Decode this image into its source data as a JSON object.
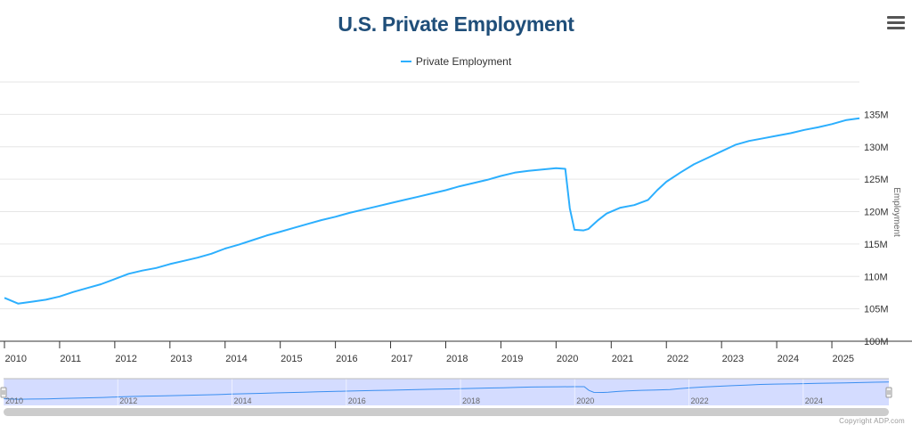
{
  "header": {
    "title": "U.S. Private Employment",
    "menu_icon": "hamburger-menu-icon"
  },
  "legend": {
    "label": "Private Employment",
    "color": "#2caffe"
  },
  "colors": {
    "series": "#2caffe",
    "title": "#1f4e79",
    "navigator_fill": "#ccd6ff",
    "navigator_line": "#3a8ef0",
    "scrollbar": "#cccccc"
  },
  "footer": {
    "copyright": "Copyright ADP.com"
  },
  "chart_data": {
    "type": "line",
    "title": "U.S. Private Employment",
    "xlabel": "",
    "ylabel": "Employment",
    "y_ticks": [
      "100M",
      "105M",
      "110M",
      "115M",
      "120M",
      "125M",
      "130M",
      "135M"
    ],
    "x_ticks": [
      "2010",
      "2011",
      "2012",
      "2013",
      "2014",
      "2015",
      "2016",
      "2017",
      "2018",
      "2019",
      "2020",
      "2021",
      "2022",
      "2023",
      "2024",
      "2025"
    ],
    "navigator_ticks": [
      "2010",
      "2012",
      "2014",
      "2016",
      "2018",
      "2020",
      "2022",
      "2024"
    ],
    "ylim": [
      100,
      140
    ],
    "xlim": [
      "2010-01",
      "2025-07"
    ],
    "y_unit": "millions",
    "grid": true,
    "legend_position": "top-center",
    "series": [
      {
        "name": "Private Employment",
        "points": [
          [
            "2010-01",
            106.7
          ],
          [
            "2010-04",
            105.8
          ],
          [
            "2010-07",
            106.1
          ],
          [
            "2010-10",
            106.4
          ],
          [
            "2011-01",
            106.9
          ],
          [
            "2011-04",
            107.6
          ],
          [
            "2011-07",
            108.2
          ],
          [
            "2011-10",
            108.8
          ],
          [
            "2012-01",
            109.6
          ],
          [
            "2012-04",
            110.4
          ],
          [
            "2012-07",
            110.9
          ],
          [
            "2012-10",
            111.3
          ],
          [
            "2013-01",
            111.9
          ],
          [
            "2013-04",
            112.4
          ],
          [
            "2013-07",
            112.9
          ],
          [
            "2013-10",
            113.5
          ],
          [
            "2014-01",
            114.3
          ],
          [
            "2014-04",
            114.9
          ],
          [
            "2014-07",
            115.6
          ],
          [
            "2014-10",
            116.3
          ],
          [
            "2015-01",
            116.9
          ],
          [
            "2015-04",
            117.5
          ],
          [
            "2015-07",
            118.1
          ],
          [
            "2015-10",
            118.7
          ],
          [
            "2016-01",
            119.2
          ],
          [
            "2016-04",
            119.8
          ],
          [
            "2016-07",
            120.3
          ],
          [
            "2016-10",
            120.8
          ],
          [
            "2017-01",
            121.3
          ],
          [
            "2017-04",
            121.8
          ],
          [
            "2017-07",
            122.3
          ],
          [
            "2017-10",
            122.8
          ],
          [
            "2018-01",
            123.3
          ],
          [
            "2018-04",
            123.9
          ],
          [
            "2018-07",
            124.4
          ],
          [
            "2018-10",
            124.9
          ],
          [
            "2019-01",
            125.5
          ],
          [
            "2019-04",
            126.0
          ],
          [
            "2019-07",
            126.3
          ],
          [
            "2019-10",
            126.5
          ],
          [
            "2020-01",
            126.7
          ],
          [
            "2020-03",
            126.6
          ],
          [
            "2020-04",
            120.5
          ],
          [
            "2020-05",
            117.2
          ],
          [
            "2020-07",
            117.1
          ],
          [
            "2020-08",
            117.3
          ],
          [
            "2020-10",
            118.6
          ],
          [
            "2020-12",
            119.7
          ],
          [
            "2021-03",
            120.6
          ],
          [
            "2021-06",
            121.0
          ],
          [
            "2021-09",
            121.8
          ],
          [
            "2021-11",
            123.3
          ],
          [
            "2022-01",
            124.6
          ],
          [
            "2022-04",
            126.0
          ],
          [
            "2022-07",
            127.3
          ],
          [
            "2022-10",
            128.3
          ],
          [
            "2023-01",
            129.3
          ],
          [
            "2023-04",
            130.3
          ],
          [
            "2023-07",
            130.9
          ],
          [
            "2023-10",
            131.3
          ],
          [
            "2024-01",
            131.7
          ],
          [
            "2024-04",
            132.1
          ],
          [
            "2024-07",
            132.6
          ],
          [
            "2024-10",
            133.0
          ],
          [
            "2025-01",
            133.5
          ],
          [
            "2025-04",
            134.1
          ],
          [
            "2025-07",
            134.4
          ]
        ]
      }
    ]
  }
}
